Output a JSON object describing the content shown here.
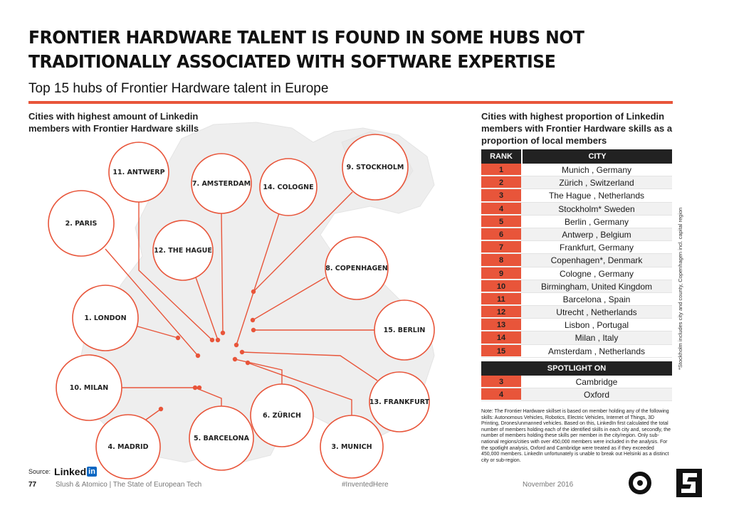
{
  "header": {
    "title": "FRONTIER HARDWARE TALENT IS FOUND IN SOME HUBS NOT TRADITIONALLY ASSOCIATED WITH SOFTWARE EXPERTISE",
    "subtitle": "Top 15 hubs of Frontier Hardware talent in Europe"
  },
  "map": {
    "caption": "Cities with highest amount of Linkedin members with Frontier Hardware skills",
    "hubs": [
      "1. LONDON",
      "2. PARIS",
      "3. MUNICH",
      "4. MADRID",
      "5. BARCELONA",
      "6. ZÜRICH",
      "7. AMSTERDAM",
      "8. COPENHAGEN",
      "9. STOCKHOLM",
      "10. MILAN",
      "11. ANTWERP",
      "12. THE HAGUE",
      "13. FRANKFURT",
      "14. COLOGNE",
      "15. BERLIN"
    ]
  },
  "table": {
    "caption": "Cities with highest proportion of Linkedin members with Frontier Hardware skills as a proportion of local members",
    "head_rank": "RANK",
    "head_city": "CITY",
    "rows": [
      {
        "rank": "1",
        "city": "Munich , Germany"
      },
      {
        "rank": "2",
        "city": "Zürich , Switzerland"
      },
      {
        "rank": "3",
        "city": "The Hague , Netherlands"
      },
      {
        "rank": "4",
        "city": "Stockholm* Sweden"
      },
      {
        "rank": "5",
        "city": "Berlin , Germany"
      },
      {
        "rank": "6",
        "city": "Antwerp , Belgium"
      },
      {
        "rank": "7",
        "city": "Frankfurt, Germany"
      },
      {
        "rank": "8",
        "city": "Copenhagen*, Denmark"
      },
      {
        "rank": "9",
        "city": "Cologne , Germany"
      },
      {
        "rank": "10",
        "city": "Birmingham, United Kingdom"
      },
      {
        "rank": "11",
        "city": "Barcelona , Spain"
      },
      {
        "rank": "12",
        "city": "Utrecht , Netherlands"
      },
      {
        "rank": "13",
        "city": "Lisbon , Portugal"
      },
      {
        "rank": "14",
        "city": "Milan , Italy"
      },
      {
        "rank": "15",
        "city": "Amsterdam , Netherlands"
      }
    ],
    "spotlight_head": "SPOTLIGHT ON",
    "spotlight_rows": [
      {
        "rank": "3",
        "city": "Cambridge"
      },
      {
        "rank": "4",
        "city": "Oxford"
      }
    ],
    "side_note": "*Stockholm includes city and county, Copenhagen incl. capital region",
    "note": "Note: The Frontier Hardware skillset is based on member holding any of the following skills: Autonomous Vehicles, Robotics, Electric Vehicles, Internet of Things, 3D Printing, Drones/unmanned vehicles. Based on this, LinkedIn first calculated the total number of members holding each of the identified skills in each city and, secondly, the number of members holding these skills per member in the city/region. Only sub-national regions/cities with over 450,000 members were included in the analysis. For the spotlight analysis, Oxford and Cambridge were treated as if they exceeded 450,000 members. LinkedIn unfortunately is unable to break out Helsinki as a distinct city or sub-region."
  },
  "footer": {
    "source_label": "Source:",
    "source_brand": "Linked",
    "source_brand_in": "in",
    "page": "77",
    "publisher": "Slush & Atomico  |  The State of European Tech",
    "hashtag": "#InventedHere",
    "date": "November 2016"
  },
  "colors": {
    "accent": "#e8553a",
    "dark": "#222222",
    "map": "#eeeeee"
  }
}
